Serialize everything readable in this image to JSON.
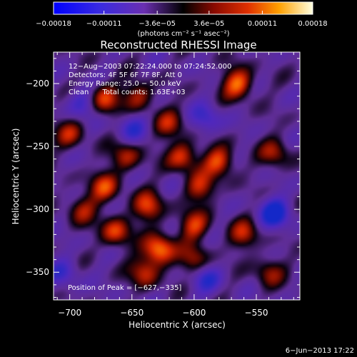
{
  "chart_data": {
    "type": "heatmap",
    "title": "Reconstructed RHESSI Image",
    "xlabel": "Heliocentric X (arcsec)",
    "ylabel": "Heliocentric Y (arcsec)",
    "xlim": [
      -713,
      -515
    ],
    "ylim": [
      -372,
      -175
    ],
    "x_ticks": [
      -700,
      -650,
      -600,
      -550
    ],
    "x_tick_labels": [
      "−700",
      "−650",
      "−600",
      "−550"
    ],
    "y_ticks": [
      -200,
      -250,
      -300,
      -350
    ],
    "y_tick_labels": [
      "−200",
      "−250",
      "−300",
      "−350"
    ],
    "colorbar": {
      "range": [
        -0.00018,
        0.00018
      ],
      "ticks": [
        -0.00018,
        -0.00011,
        -3.6e-05,
        3.6e-05,
        0.00011,
        0.00018
      ],
      "tick_labels": [
        "−0.00018",
        "−0.00011",
        "−3.6e−05",
        "3.6e−05",
        "0.00011",
        "0.00018"
      ],
      "units_label": "(photons cm⁻² s⁻¹ asec⁻²)"
    },
    "annotations": {
      "time_range": "12−Aug−2003 07:22:24.000 to 07:24:52.000",
      "detectors": "Detectors: 4F 5F 6F 7F 8F, Att 0",
      "energy_range": "Energy Range: 25.0 − 50.0 keV",
      "method_counts": "Clean      Total counts: 1.63E+03",
      "peak": "Position of Peak = [−627,−335]"
    },
    "peak_position": [
      -627,
      -335
    ],
    "total_counts": 1630,
    "energy_range_kev": [
      25.0,
      50.0
    ],
    "bright_sources": [
      {
        "x": -628,
        "y": -332,
        "v": 1.0
      },
      {
        "x": -663,
        "y": -318,
        "v": 0.75
      },
      {
        "x": -600,
        "y": -313,
        "v": 0.7
      },
      {
        "x": -637,
        "y": -298,
        "v": 0.75
      },
      {
        "x": -672,
        "y": -282,
        "v": 0.7
      },
      {
        "x": -595,
        "y": -283,
        "v": 0.65
      },
      {
        "x": -580,
        "y": -262,
        "v": 0.82
      },
      {
        "x": -610,
        "y": -258,
        "v": 0.75
      },
      {
        "x": -655,
        "y": -258,
        "v": 0.6
      },
      {
        "x": -565,
        "y": -200,
        "v": 0.92
      },
      {
        "x": -672,
        "y": -212,
        "v": 0.75
      },
      {
        "x": -645,
        "y": -210,
        "v": 0.62
      },
      {
        "x": -620,
        "y": -232,
        "v": 0.55
      },
      {
        "x": -700,
        "y": -240,
        "v": 0.55
      },
      {
        "x": -690,
        "y": -300,
        "v": 0.55
      },
      {
        "x": -640,
        "y": -350,
        "v": 0.65
      },
      {
        "x": -600,
        "y": -340,
        "v": 0.55
      },
      {
        "x": -560,
        "y": -320,
        "v": 0.6
      },
      {
        "x": -535,
        "y": -255,
        "v": 0.55
      },
      {
        "x": -540,
        "y": -350,
        "v": 0.5
      }
    ],
    "dim_regions": [
      {
        "x": -535,
        "y": -303,
        "v": -0.8
      },
      {
        "x": -590,
        "y": -355,
        "v": -0.5
      },
      {
        "x": -690,
        "y": -215,
        "v": -0.45
      },
      {
        "x": -590,
        "y": -228,
        "v": -0.45
      },
      {
        "x": -650,
        "y": -235,
        "v": -0.45
      },
      {
        "x": -705,
        "y": -350,
        "v": -0.4
      }
    ],
    "grid": false
  },
  "footer": {
    "date": "6−Jun−2013 17:22"
  }
}
